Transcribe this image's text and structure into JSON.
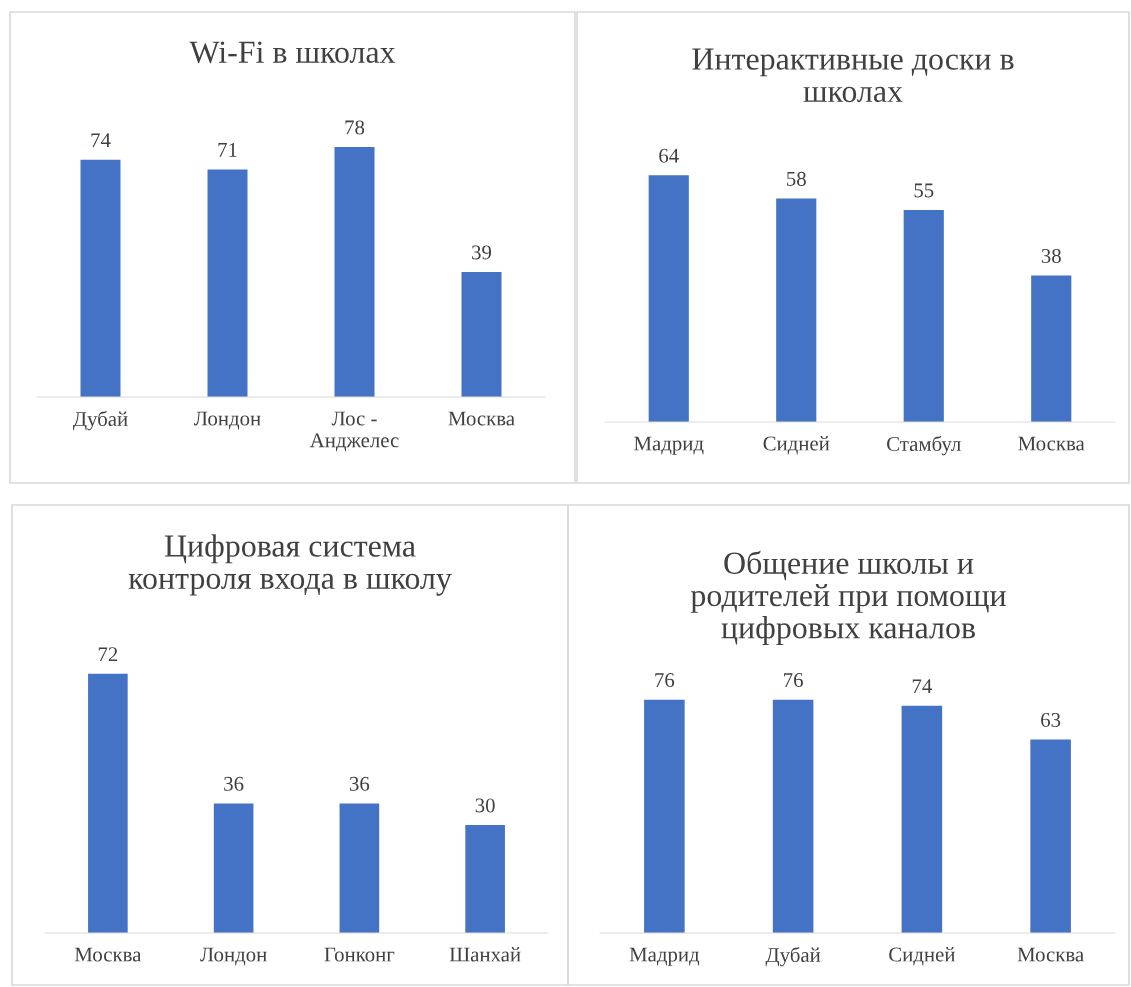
{
  "chart_data": [
    {
      "type": "bar",
      "title": "Wi-Fi в школах",
      "categories": [
        "Дубай",
        "Лондон",
        "Лос -\nАнджелес",
        "Москва"
      ],
      "values": [
        74,
        71,
        78,
        39
      ],
      "color": "#4472c4",
      "data_labels": true
    },
    {
      "type": "bar",
      "title": "Интерактивные доски в\nшколах",
      "categories": [
        "Мадрид",
        "Сидней",
        "Стамбул",
        "Москва"
      ],
      "values": [
        64,
        58,
        55,
        38
      ],
      "color": "#4472c4",
      "data_labels": true
    },
    {
      "type": "bar",
      "title": "Цифровая система\nконтроля входа в школу",
      "categories": [
        "Москва",
        "Лондон",
        "Гонконг",
        "Шанхай"
      ],
      "values": [
        72,
        36,
        36,
        30
      ],
      "color": "#4472c4",
      "data_labels": true
    },
    {
      "type": "bar",
      "title": "Общение школы и\nродителей при помощи\nцифровых каналов",
      "categories": [
        "Мадрид",
        "Дубай",
        "Сидней",
        "Москва"
      ],
      "values": [
        76,
        76,
        74,
        63
      ],
      "color": "#4472c4",
      "data_labels": true
    }
  ]
}
